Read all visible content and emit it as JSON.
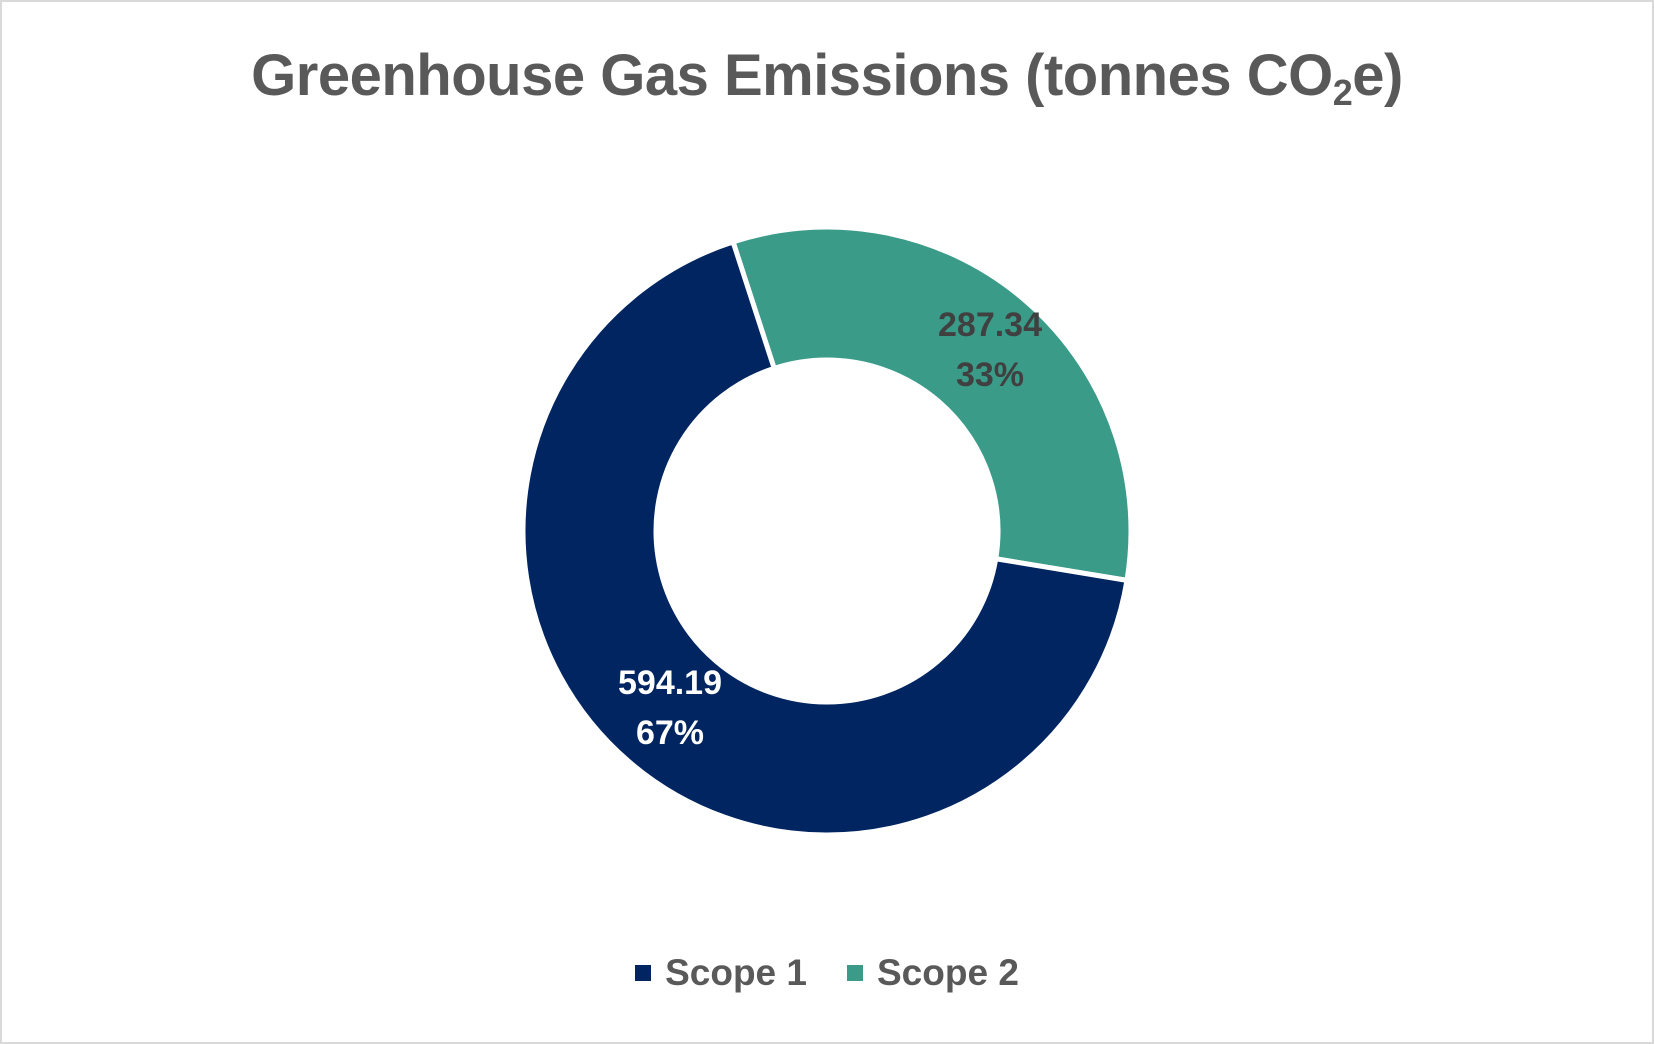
{
  "chart_data": {
    "type": "pie",
    "subtype": "donut",
    "title": "Greenhouse Gas Emissions (tonnes CO2e)",
    "title_main": "Greenhouse Gas Emissions (tonnes CO",
    "title_sub": "2",
    "title_end": "e)",
    "categories": [
      "Scope 1",
      "Scope 2"
    ],
    "values": [
      594.19,
      287.34
    ],
    "percentages": [
      "67%",
      "33%"
    ],
    "value_labels": [
      "594.19",
      "287.34"
    ],
    "colors": [
      "#002561",
      "#3a9b89"
    ],
    "legend_position": "bottom"
  },
  "legend": [
    {
      "label": "Scope 1",
      "color": "#002561"
    },
    {
      "label": "Scope 2",
      "color": "#3a9b89"
    }
  ]
}
